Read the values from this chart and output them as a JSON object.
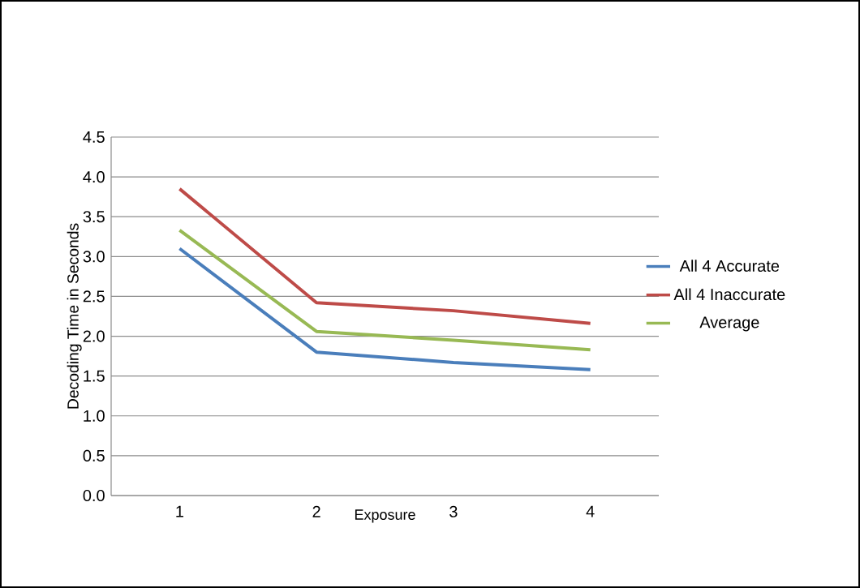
{
  "chart_data": {
    "type": "line",
    "xlabel": "Exposure",
    "ylabel": "Decoding Time in Seconds",
    "categories": [
      "1",
      "2",
      "3",
      "4"
    ],
    "series": [
      {
        "name": "All 4 Accurate",
        "color": "#4a7ebb",
        "values": [
          3.1,
          1.8,
          1.67,
          1.58
        ]
      },
      {
        "name": "All 4 Inaccurate",
        "color": "#be4b48",
        "values": [
          3.85,
          2.42,
          2.32,
          2.16
        ]
      },
      {
        "name": "Average",
        "color": "#98b954",
        "values": [
          3.33,
          2.06,
          1.95,
          1.83
        ]
      }
    ],
    "ylim": [
      0,
      4.5
    ],
    "yticks": [
      {
        "value": 0,
        "label": "0.0"
      },
      {
        "value": 0.5,
        "label": "0.5"
      },
      {
        "value": 1,
        "label": "1.0"
      },
      {
        "value": 1.5,
        "label": "1.5"
      },
      {
        "value": 2,
        "label": "2.0"
      },
      {
        "value": 2.5,
        "label": "2.5"
      },
      {
        "value": 3,
        "label": "3.0"
      },
      {
        "value": 3.5,
        "label": "3.5"
      },
      {
        "value": 4,
        "label": "4.0"
      },
      {
        "value": 4.5,
        "label": "4.5"
      }
    ],
    "grid": "y",
    "legend": "right"
  }
}
